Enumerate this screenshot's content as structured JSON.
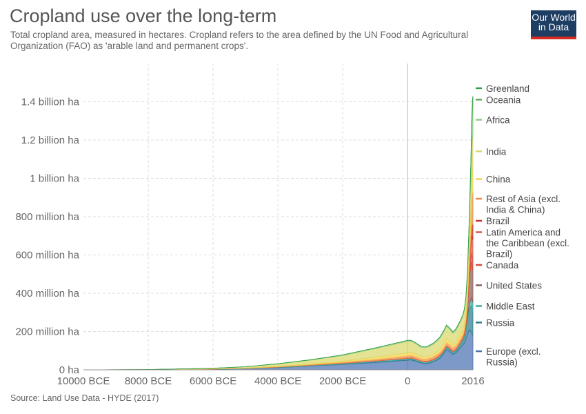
{
  "header": {
    "title": "Cropland use over the long-term",
    "subtitle": "Total cropland area, measured in hectares. Cropland refers to the area defined by the UN Food and Agricultural Organization (FAO) as 'arable land and permanent crops'."
  },
  "logo": {
    "line1": "Our World",
    "line2": "in Data",
    "bg_color": "#1d3d63",
    "accent_color": "#d42b21"
  },
  "footer": {
    "source": "Source: Land Use Data - HYDE (2017)"
  },
  "chart_data": {
    "type": "area",
    "stacked": true,
    "title": "Cropland use over the long-term",
    "xlabel": "",
    "ylabel": "",
    "xlim": [
      -10000,
      2016
    ],
    "ylim": [
      0,
      1600000000
    ],
    "grid": true,
    "legend_placement": "right",
    "x": [
      -10000,
      -8000,
      -6000,
      -5000,
      -4000,
      -3000,
      -2000,
      -1000,
      0,
      100,
      200,
      300,
      400,
      500,
      600,
      700,
      800,
      900,
      1000,
      1100,
      1200,
      1300,
      1400,
      1500,
      1600,
      1700,
      1750,
      1800,
      1850,
      1900,
      1950,
      1980,
      2000,
      2016
    ],
    "x_ticks": [
      {
        "value": -10000,
        "label": "10000 BCE"
      },
      {
        "value": -8000,
        "label": "8000 BCE"
      },
      {
        "value": -6000,
        "label": "6000 BCE"
      },
      {
        "value": -4000,
        "label": "4000 BCE"
      },
      {
        "value": -2000,
        "label": "2000 BCE"
      },
      {
        "value": 0,
        "label": "0"
      },
      {
        "value": 2016,
        "label": "2016"
      }
    ],
    "y_ticks": [
      {
        "value": 0,
        "label": "0 ha"
      },
      {
        "value": 200000000,
        "label": "200 million ha"
      },
      {
        "value": 400000000,
        "label": "400 million ha"
      },
      {
        "value": 600000000,
        "label": "600 million ha"
      },
      {
        "value": 800000000,
        "label": "800 million ha"
      },
      {
        "value": 1000000000,
        "label": "1 billion ha"
      },
      {
        "value": 1200000000,
        "label": "1.2 billion ha"
      },
      {
        "value": 1400000000,
        "label": "1.4 billion ha"
      }
    ],
    "series": [
      {
        "name": "Europe (excl. Russia)",
        "color": "#4a72b2",
        "label": "Europe (excl.\nRussia)",
        "values": [
          0,
          500000,
          3000000,
          6000000,
          12000000,
          20000000,
          28000000,
          38000000,
          50000000,
          52000000,
          48000000,
          42000000,
          36000000,
          32000000,
          33000000,
          36000000,
          42000000,
          50000000,
          60000000,
          80000000,
          105000000,
          95000000,
          80000000,
          90000000,
          110000000,
          130000000,
          140000000,
          160000000,
          185000000,
          210000000,
          200000000,
          195000000,
          180000000,
          180000000
        ]
      },
      {
        "name": "Russia",
        "color": "#2e7d8c",
        "label": "Russia",
        "values": [
          0,
          0,
          100000,
          200000,
          500000,
          1000000,
          2000000,
          3000000,
          4000000,
          4000000,
          4000000,
          4000000,
          4000000,
          4000000,
          4000000,
          5000000,
          5000000,
          6000000,
          7000000,
          8000000,
          10000000,
          9000000,
          8000000,
          10000000,
          15000000,
          20000000,
          30000000,
          50000000,
          80000000,
          110000000,
          130000000,
          140000000,
          125000000,
          120000000
        ]
      },
      {
        "name": "Middle East",
        "color": "#3aa9a6",
        "label": "Middle East",
        "values": [
          0,
          300000,
          1000000,
          1500000,
          2000000,
          3000000,
          4000000,
          5000000,
          6000000,
          6000000,
          6000000,
          6000000,
          5500000,
          5500000,
          5500000,
          6000000,
          6000000,
          6500000,
          7000000,
          7000000,
          7500000,
          7000000,
          6500000,
          7000000,
          8000000,
          9000000,
          10000000,
          12000000,
          15000000,
          20000000,
          35000000,
          45000000,
          50000000,
          52000000
        ]
      },
      {
        "name": "United States",
        "color": "#8a5d58",
        "label": "United States",
        "values": [
          0,
          0,
          0,
          0,
          0,
          0,
          0,
          0,
          0,
          0,
          0,
          0,
          0,
          0,
          0,
          0,
          0,
          0,
          0,
          0,
          0,
          0,
          0,
          0,
          500000,
          1000000,
          2000000,
          5000000,
          35000000,
          130000000,
          180000000,
          185000000,
          175000000,
          165000000
        ]
      },
      {
        "name": "Canada",
        "color": "#d84a3c",
        "label": "Canada",
        "values": [
          0,
          0,
          0,
          0,
          0,
          0,
          0,
          0,
          0,
          0,
          0,
          0,
          0,
          0,
          0,
          0,
          0,
          0,
          0,
          0,
          0,
          0,
          0,
          0,
          0,
          200000,
          300000,
          1000000,
          3000000,
          15000000,
          40000000,
          45000000,
          48000000,
          47000000
        ]
      },
      {
        "name": "Latin America and the Caribbean (excl. Brazil)",
        "color": "#e05546",
        "label": "Latin America and\nthe Caribbean (excl.\nBrazil)",
        "values": [
          0,
          0,
          0,
          100000,
          200000,
          500000,
          1000000,
          1500000,
          2000000,
          2100000,
          2200000,
          2300000,
          2400000,
          2500000,
          2600000,
          2700000,
          2800000,
          2900000,
          3000000,
          3200000,
          3400000,
          3500000,
          3600000,
          3800000,
          3000000,
          5000000,
          7000000,
          10000000,
          15000000,
          30000000,
          60000000,
          90000000,
          110000000,
          115000000
        ]
      },
      {
        "name": "Brazil",
        "color": "#c9312b",
        "label": "Brazil",
        "values": [
          0,
          0,
          0,
          0,
          0,
          0,
          0,
          0,
          0,
          0,
          0,
          0,
          0,
          0,
          0,
          0,
          0,
          0,
          0,
          0,
          0,
          0,
          0,
          0,
          200000,
          500000,
          1000000,
          2000000,
          4000000,
          8000000,
          25000000,
          50000000,
          70000000,
          80000000
        ]
      },
      {
        "name": "Rest of Asia (excl. India & China)",
        "color": "#ef8a47",
        "label": "Rest of Asia (excl.\nIndia & China)",
        "values": [
          0,
          100000,
          500000,
          1000000,
          2000000,
          3000000,
          5000000,
          8000000,
          12000000,
          12500000,
          12500000,
          12500000,
          12500000,
          12500000,
          13000000,
          13500000,
          14000000,
          14500000,
          15000000,
          16000000,
          17000000,
          17000000,
          17000000,
          18000000,
          19000000,
          20000000,
          22000000,
          25000000,
          35000000,
          50000000,
          90000000,
          140000000,
          165000000,
          170000000
        ]
      },
      {
        "name": "China",
        "color": "#f7d44b",
        "label": "China",
        "values": [
          0,
          0,
          500000,
          1000000,
          2000000,
          3000000,
          5000000,
          10000000,
          15000000,
          15000000,
          14000000,
          12000000,
          11000000,
          11000000,
          11000000,
          12000000,
          13000000,
          14000000,
          16000000,
          19000000,
          22000000,
          18000000,
          15000000,
          17000000,
          20000000,
          22000000,
          25000000,
          30000000,
          45000000,
          60000000,
          90000000,
          100000000,
          115000000,
          120000000
        ]
      },
      {
        "name": "India",
        "color": "#d9d76a",
        "label": "India",
        "values": [
          0,
          1000000,
          3000000,
          6000000,
          12000000,
          20000000,
          30000000,
          45000000,
          60000000,
          58000000,
          55000000,
          52000000,
          48000000,
          47000000,
          48000000,
          50000000,
          52000000,
          55000000,
          58000000,
          60000000,
          62000000,
          62000000,
          60000000,
          63000000,
          65000000,
          68000000,
          70000000,
          75000000,
          90000000,
          115000000,
          145000000,
          165000000,
          170000000,
          170000000
        ]
      },
      {
        "name": "Africa",
        "color": "#8fce88",
        "label": "Africa",
        "values": [
          0,
          0,
          200000,
          500000,
          1000000,
          2000000,
          3000000,
          4000000,
          5000000,
          5000000,
          5000000,
          5000000,
          5000000,
          5000000,
          5000000,
          5000000,
          5500000,
          5500000,
          6000000,
          6500000,
          7000000,
          7000000,
          7000000,
          7500000,
          8000000,
          9000000,
          10000000,
          12000000,
          15000000,
          25000000,
          60000000,
          110000000,
          150000000,
          160000000
        ]
      },
      {
        "name": "Oceania",
        "color": "#5bac5b",
        "label": "Oceania",
        "values": [
          0,
          0,
          0,
          0,
          0,
          0,
          0,
          0,
          0,
          0,
          0,
          0,
          0,
          0,
          0,
          0,
          0,
          0,
          0,
          0,
          0,
          0,
          0,
          0,
          0,
          0,
          0,
          500000,
          1000000,
          5000000,
          20000000,
          45000000,
          50000000,
          50000000
        ]
      },
      {
        "name": "Greenland",
        "color": "#2e9d45",
        "label": "Greenland",
        "values": [
          0,
          0,
          0,
          0,
          0,
          0,
          0,
          0,
          0,
          0,
          0,
          0,
          0,
          0,
          0,
          0,
          0,
          0,
          0,
          0,
          0,
          0,
          0,
          0,
          0,
          0,
          0,
          0,
          0,
          0,
          0,
          0,
          100000,
          100000
        ]
      }
    ]
  }
}
